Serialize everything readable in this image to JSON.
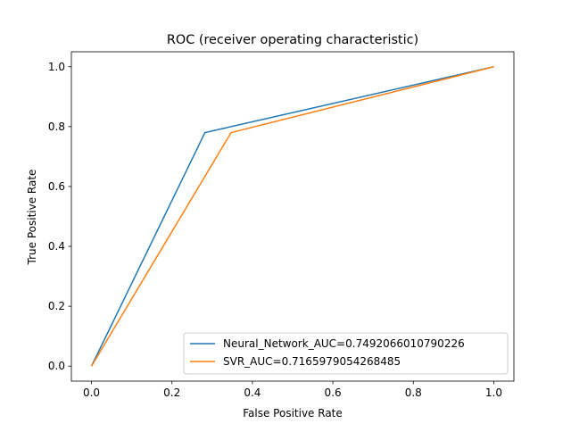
{
  "chart_data": {
    "type": "line",
    "title": "ROC (receiver operating characteristic)",
    "xlabel": "False Positive Rate",
    "ylabel": "True Positive Rate",
    "xlim": [
      -0.05,
      1.05
    ],
    "ylim": [
      -0.05,
      1.05
    ],
    "xticks": [
      0.0,
      0.2,
      0.4,
      0.6,
      0.8,
      1.0
    ],
    "xtick_labels": [
      "0.0",
      "0.2",
      "0.4",
      "0.6",
      "0.8",
      "1.0"
    ],
    "yticks": [
      0.0,
      0.2,
      0.4,
      0.6,
      0.8,
      1.0
    ],
    "ytick_labels": [
      "0.0",
      "0.2",
      "0.4",
      "0.6",
      "0.8",
      "1.0"
    ],
    "grid": false,
    "legend_position": "lower-right",
    "series": [
      {
        "name": "Neural_Network_AUC=0.7492066010790226",
        "color": "#1f77b4",
        "x": [
          0.0,
          0.282,
          1.0
        ],
        "y": [
          0.0,
          0.78,
          1.0
        ]
      },
      {
        "name": "SVR_AUC=0.7165979054268485",
        "color": "#ff7f0e",
        "x": [
          0.0,
          0.347,
          1.0
        ],
        "y": [
          0.0,
          0.78,
          1.0
        ]
      }
    ]
  }
}
